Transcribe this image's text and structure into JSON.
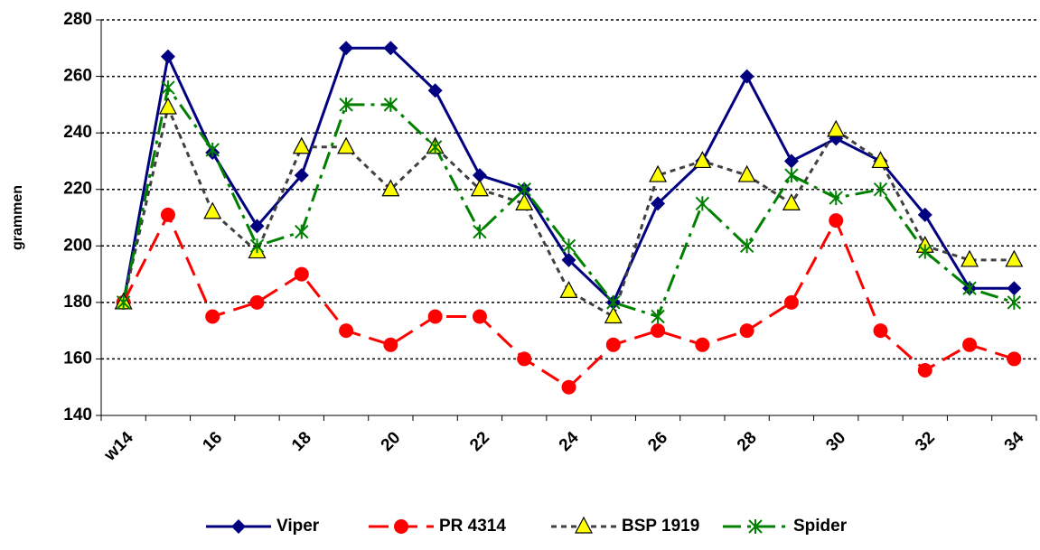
{
  "chart_data": {
    "type": "line",
    "ylabel": "grammen",
    "categories": [
      "w14",
      null,
      "16",
      null,
      "18",
      null,
      "20",
      null,
      "22",
      null,
      "24",
      null,
      "26",
      null,
      "28",
      null,
      "30",
      null,
      "32",
      null,
      "34"
    ],
    "series": [
      {
        "name": "Viper",
        "color": "#000080",
        "marker": "diamond",
        "dash": "solid",
        "values": [
          180,
          267,
          233,
          207,
          225,
          270,
          270,
          255,
          225,
          220,
          195,
          180,
          215,
          230,
          260,
          230,
          238,
          230,
          211,
          185,
          185
        ]
      },
      {
        "name": "PR 4314",
        "color": "#ff0000",
        "marker": "circle",
        "dash": "long",
        "values": [
          180,
          211,
          175,
          180,
          190,
          170,
          165,
          175,
          175,
          160,
          150,
          165,
          170,
          165,
          170,
          180,
          209,
          170,
          156,
          165,
          160
        ]
      },
      {
        "name": "BSP 1919",
        "color": "#404040",
        "marker": "triangle",
        "marker_fill": "#ffff00",
        "dash": "short",
        "values": [
          180,
          249,
          212,
          198,
          235,
          235,
          220,
          235,
          220,
          215,
          184,
          175,
          225,
          230,
          225,
          215,
          241,
          230,
          200,
          195,
          195
        ]
      },
      {
        "name": "Spider",
        "color": "#008000",
        "marker": "star",
        "dash": "dashdot",
        "values": [
          180,
          256,
          234,
          200,
          205,
          250,
          250,
          235,
          205,
          220,
          200,
          180,
          175,
          215,
          200,
          225,
          217,
          220,
          198,
          185,
          180
        ]
      }
    ],
    "ylim": [
      140,
      280
    ],
    "yticks": [
      140,
      160,
      180,
      200,
      220,
      240,
      260,
      280
    ],
    "grid": true,
    "legend": "bottom"
  }
}
